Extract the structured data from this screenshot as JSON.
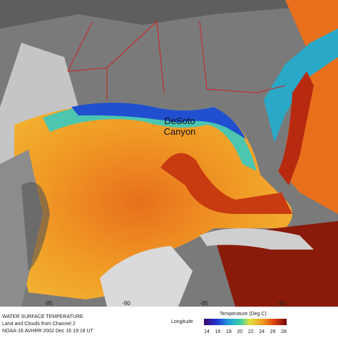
{
  "annotation": "DeSoto\nCanyon",
  "caption": {
    "line1": "WATER SURFACE TEMPERATURE",
    "line2": "Land and Clouds from Channel 2",
    "line3": "NOAA-16 AVHRR 2002 Dec 16 19:18 UT"
  },
  "longitude": {
    "label": "Longitude",
    "ticks": [
      "-95",
      "-90",
      "-85",
      "-80"
    ]
  },
  "colorbar": {
    "label": "Temperature (Deg C)",
    "ticks": [
      "14",
      "16",
      "18",
      "20",
      "22",
      "24",
      "26",
      "28"
    ]
  }
}
